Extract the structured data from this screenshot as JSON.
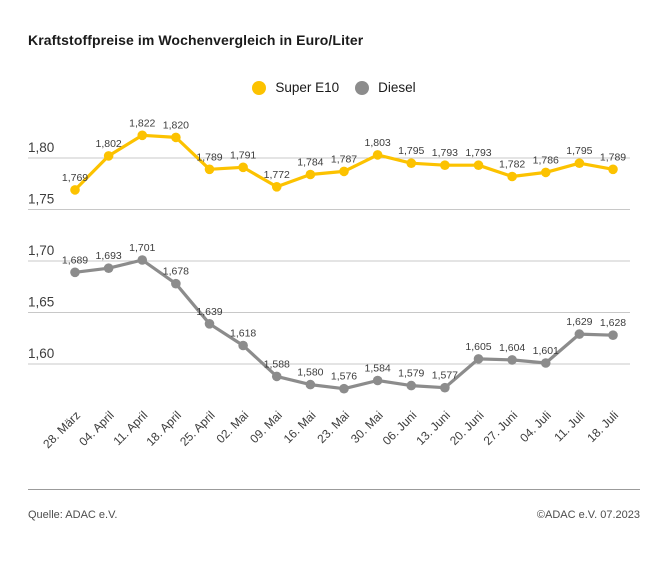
{
  "title": "Kraftstoffpreise im Wochenvergleich in Euro/Liter",
  "legend": {
    "items": [
      {
        "label": "Super E10",
        "color": "#fcc200"
      },
      {
        "label": "Diesel",
        "color": "#8c8c8c"
      }
    ]
  },
  "footer": {
    "source": "Quelle: ADAC e.V.",
    "copyright": "©ADAC e.V. 07.2023"
  },
  "chart_data": {
    "type": "line",
    "title": "Kraftstoffpreise im Wochenvergleich in Euro/Liter",
    "xlabel": "",
    "ylabel": "Euro/Liter",
    "categories": [
      "28. März",
      "04. April",
      "11. April",
      "18. April",
      "25. April",
      "02. Mai",
      "09. Mai",
      "16. Mai",
      "23. Mai",
      "30. Mai",
      "06. Juni",
      "13. Juni",
      "20. Juni",
      "27. Juni",
      "04. Juli",
      "11. Juli",
      "18. Juli"
    ],
    "series": [
      {
        "name": "Super E10",
        "color": "#fcc200",
        "values": [
          1.769,
          1.802,
          1.822,
          1.82,
          1.789,
          1.791,
          1.772,
          1.784,
          1.787,
          1.803,
          1.795,
          1.793,
          1.793,
          1.782,
          1.786,
          1.795,
          1.789
        ]
      },
      {
        "name": "Diesel",
        "color": "#8c8c8c",
        "values": [
          1.689,
          1.693,
          1.701,
          1.678,
          1.639,
          1.618,
          1.588,
          1.58,
          1.576,
          1.584,
          1.579,
          1.577,
          1.605,
          1.604,
          1.601,
          1.629,
          1.628
        ]
      }
    ],
    "yticks": [
      1.8,
      1.75,
      1.7,
      1.65,
      1.6
    ],
    "ytick_labels": [
      "1,80",
      "1,75",
      "1,70",
      "1,65",
      "1,60"
    ],
    "ylim": [
      1.55,
      1.84
    ],
    "grid": true,
    "legend_position": "top-center",
    "point_labels_visible": true,
    "decimal_separator": ",",
    "colors": {
      "grid": "#c8c8c8",
      "value_label": "#3d3d3d",
      "tick_label": "#3d3d3d"
    }
  }
}
